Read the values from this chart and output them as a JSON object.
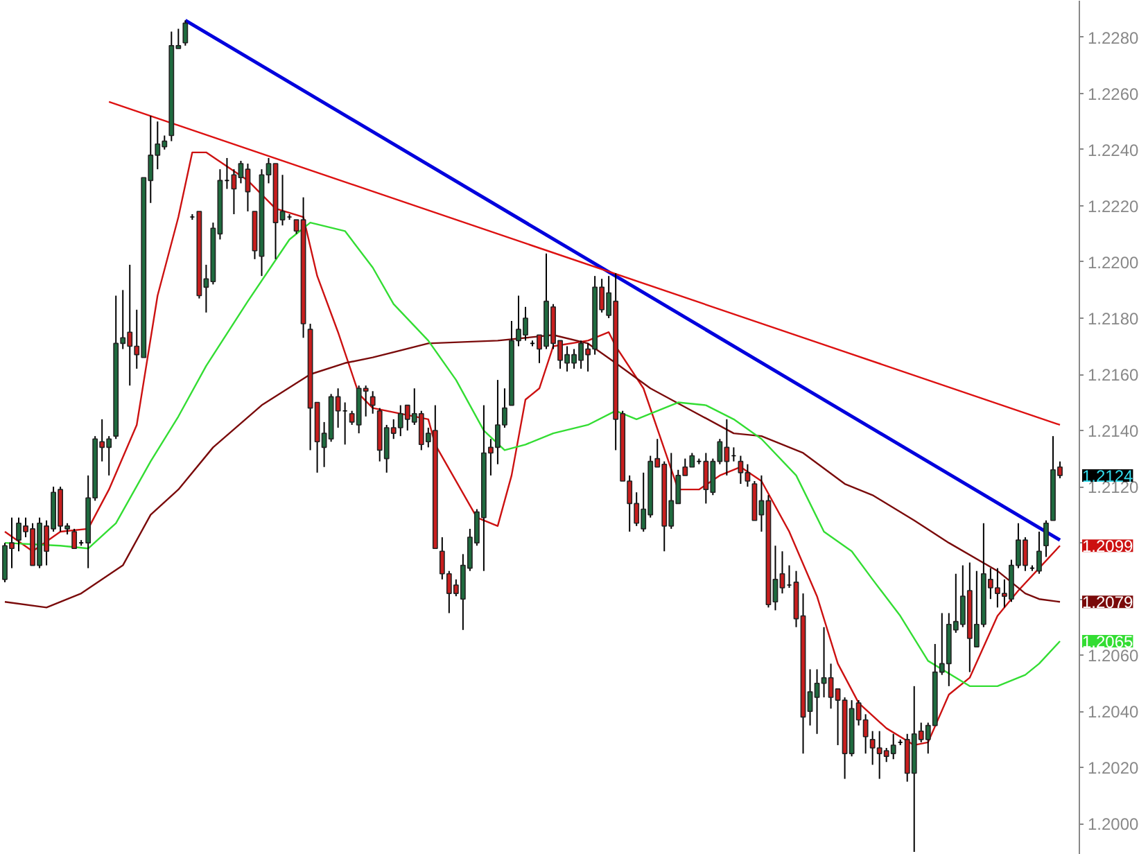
{
  "chart_data": {
    "type": "candlestick",
    "categories": [
      null,
      null,
      null,
      null,
      null,
      null,
      null,
      null,
      null,
      null,
      null,
      null,
      null,
      null,
      null,
      null,
      null,
      null,
      null,
      null,
      null,
      null,
      null,
      null,
      null,
      null,
      null,
      null,
      null,
      null,
      null,
      null,
      null,
      null,
      null,
      null,
      null,
      null,
      null,
      null,
      null,
      null,
      null,
      null,
      null,
      null,
      null,
      null,
      null,
      null,
      null,
      null,
      null,
      null,
      null,
      null,
      null,
      null,
      null,
      null,
      null,
      null,
      null,
      null,
      null,
      null,
      null,
      null,
      null,
      null,
      null,
      null,
      null,
      null,
      null,
      null,
      null,
      null,
      null,
      null,
      null,
      null,
      null,
      null,
      null,
      null,
      null,
      null,
      null,
      null,
      null,
      null,
      null,
      null,
      null,
      null,
      null,
      null,
      null,
      null,
      null,
      null,
      null,
      null,
      null,
      null,
      null,
      null,
      null,
      null,
      null,
      null,
      null,
      null,
      null,
      null,
      null,
      null,
      null,
      null,
      null,
      null,
      null,
      null,
      null,
      null,
      null,
      null,
      null,
      null,
      null,
      null,
      null,
      null,
      null,
      null,
      null,
      null,
      null,
      null,
      null,
      null,
      null,
      null,
      null,
      null,
      null,
      null,
      null,
      null,
      null,
      null,
      null
    ],
    "ohlc": [
      [
        1.2087,
        1.21,
        1.2086,
        1.2099
      ],
      [
        1.21,
        1.2109,
        1.2091,
        1.2098
      ],
      [
        1.2101,
        1.2109,
        1.2097,
        1.2107
      ],
      [
        1.2106,
        1.2109,
        1.2102,
        1.2104
      ],
      [
        1.2105,
        1.2107,
        1.2092,
        1.2092
      ],
      [
        1.2092,
        1.2109,
        1.2091,
        1.2107
      ],
      [
        1.2106,
        1.2108,
        1.2092,
        1.2097
      ],
      [
        1.2105,
        1.212,
        1.2104,
        1.2118
      ],
      [
        1.2119,
        1.212,
        1.2104,
        1.2106
      ],
      [
        1.2105,
        1.2107,
        1.2103,
        1.2106
      ],
      [
        1.2104,
        1.2105,
        1.2098,
        1.2098
      ],
      [
        1.21,
        1.2101,
        1.2099,
        1.21
      ],
      [
        1.21,
        1.2124,
        1.2091,
        1.2116
      ],
      [
        1.2116,
        1.2138,
        1.2115,
        1.2137
      ],
      [
        1.2136,
        1.2144,
        1.2129,
        1.2134
      ],
      [
        1.2134,
        1.2138,
        1.2124,
        1.2137
      ],
      [
        1.2138,
        1.2188,
        1.2137,
        1.2171
      ],
      [
        1.2171,
        1.219,
        1.2169,
        1.2173
      ],
      [
        1.2175,
        1.2199,
        1.2156,
        1.217
      ],
      [
        1.217,
        1.2183,
        1.2162,
        1.2167
      ],
      [
        1.2166,
        1.223,
        1.2166,
        1.223
      ],
      [
        1.2229,
        1.2252,
        1.2221,
        1.2238
      ],
      [
        1.2238,
        1.225,
        1.2233,
        1.2242
      ],
      [
        1.2241,
        1.2245,
        1.224,
        1.2243
      ],
      [
        1.2245,
        1.2282,
        1.2243,
        1.2277
      ],
      [
        1.2276,
        1.2283,
        1.2276,
        1.2277
      ],
      [
        1.2278,
        1.2286,
        1.2277,
        1.2285
      ],
      [
        1.2216,
        1.2217,
        1.2215,
        1.2216
      ],
      [
        1.2218,
        1.2218,
        1.2187,
        1.2188
      ],
      [
        1.2191,
        1.2199,
        1.2182,
        1.2194
      ],
      [
        1.2193,
        1.2214,
        1.2192,
        1.2212
      ],
      [
        1.221,
        1.2233,
        1.2208,
        1.2229
      ],
      [
        1.2229,
        1.2237,
        1.2226,
        1.2229
      ],
      [
        1.2231,
        1.2233,
        1.2217,
        1.2226
      ],
      [
        1.223,
        1.2236,
        1.2228,
        1.2235
      ],
      [
        1.2233,
        1.2235,
        1.2218,
        1.2225
      ],
      [
        1.2218,
        1.2218,
        1.2201,
        1.2204
      ],
      [
        1.2202,
        1.2233,
        1.2195,
        1.2231
      ],
      [
        1.2231,
        1.2237,
        1.2228,
        1.2235
      ],
      [
        1.2235,
        1.2235,
        1.2201,
        1.2214
      ],
      [
        1.2215,
        1.2231,
        1.2213,
        1.2218
      ],
      [
        1.2216,
        1.2217,
        1.2215,
        1.2216
      ],
      [
        1.2215,
        1.2215,
        1.221,
        1.2211
      ],
      [
        1.2215,
        1.2223,
        1.2173,
        1.2178
      ],
      [
        1.2176,
        1.2178,
        1.2133,
        1.2148
      ],
      [
        1.215,
        1.215,
        1.2125,
        1.2136
      ],
      [
        1.2134,
        1.2143,
        1.2127,
        1.2139
      ],
      [
        1.2137,
        1.2153,
        1.2136,
        1.2152
      ],
      [
        1.2152,
        1.2155,
        1.2141,
        1.2147
      ],
      [
        1.2147,
        1.215,
        1.2135,
        1.2147
      ],
      [
        1.2146,
        1.2147,
        1.2142,
        1.2143
      ],
      [
        1.2142,
        1.2156,
        1.2139,
        1.2155
      ],
      [
        1.2155,
        1.2156,
        1.2145,
        1.2154
      ],
      [
        1.2152,
        1.2154,
        1.2146,
        1.2149
      ],
      [
        1.2147,
        1.2148,
        1.2129,
        1.2133
      ],
      [
        1.213,
        1.2142,
        1.2125,
        1.2141
      ],
      [
        1.2141,
        1.2144,
        1.2137,
        1.2139
      ],
      [
        1.2141,
        1.2149,
        1.2138,
        1.2146
      ],
      [
        1.2149,
        1.2149,
        1.214,
        1.2144
      ],
      [
        1.2143,
        1.2155,
        1.2142,
        1.2146
      ],
      [
        1.2146,
        1.2147,
        1.2133,
        1.2135
      ],
      [
        1.2136,
        1.2141,
        1.2134,
        1.2139
      ],
      [
        1.214,
        1.2149,
        1.2098,
        1.2098
      ],
      [
        1.2097,
        1.2102,
        1.2087,
        1.2089
      ],
      [
        1.2089,
        1.209,
        1.2075,
        1.2082
      ],
      [
        1.2085,
        1.2087,
        1.2081,
        1.2082
      ],
      [
        1.208,
        1.2096,
        1.2069,
        1.2092
      ],
      [
        1.2091,
        1.2105,
        1.209,
        1.2102
      ],
      [
        1.21,
        1.2112,
        1.2099,
        1.2111
      ],
      [
        1.2109,
        1.2149,
        1.209,
        1.2132
      ],
      [
        1.2134,
        1.2137,
        1.2124,
        1.2132
      ],
      [
        1.2134,
        1.2158,
        1.2128,
        1.2142
      ],
      [
        1.2142,
        1.2155,
        1.2141,
        1.2148
      ],
      [
        1.2149,
        1.2179,
        1.2149,
        1.2172
      ],
      [
        1.2172,
        1.2188,
        1.217,
        1.2176
      ],
      [
        1.2174,
        1.2184,
        1.2172,
        1.218
      ],
      [
        1.2171,
        1.2172,
        1.217,
        1.2171
      ],
      [
        1.2174,
        1.2174,
        1.2164,
        1.2169
      ],
      [
        1.217,
        1.2203,
        1.2169,
        1.2186
      ],
      [
        1.2184,
        1.2185,
        1.2169,
        1.2171
      ],
      [
        1.2172,
        1.2172,
        1.2162,
        1.2165
      ],
      [
        1.2164,
        1.217,
        1.2161,
        1.2167
      ],
      [
        1.2164,
        1.2169,
        1.2162,
        1.2167
      ],
      [
        1.2165,
        1.2172,
        1.2162,
        1.2171
      ],
      [
        1.2169,
        1.2171,
        1.2161,
        1.2167
      ],
      [
        1.2169,
        1.2195,
        1.2167,
        1.2191
      ],
      [
        1.2191,
        1.2194,
        1.2182,
        1.2183
      ],
      [
        1.2181,
        1.2195,
        1.218,
        1.2189
      ],
      [
        1.2186,
        1.2196,
        1.2133,
        1.2144
      ],
      [
        1.2146,
        1.2147,
        1.2122,
        1.2122
      ],
      [
        1.2122,
        1.2124,
        1.2104,
        1.2114
      ],
      [
        1.2114,
        1.2118,
        1.2106,
        1.2107
      ],
      [
        1.2105,
        1.2125,
        1.2104,
        1.2112
      ],
      [
        1.211,
        1.2131,
        1.2109,
        1.2129
      ],
      [
        1.213,
        1.2137,
        1.2127,
        1.2127
      ],
      [
        1.2128,
        1.2129,
        1.2097,
        1.2106
      ],
      [
        1.2106,
        1.2132,
        1.2105,
        1.2115
      ],
      [
        1.2114,
        1.2126,
        1.2114,
        1.2124
      ],
      [
        1.2127,
        1.213,
        1.2124,
        1.2124
      ],
      [
        1.2127,
        1.2132,
        1.2127,
        1.2131
      ],
      [
        1.2129,
        1.213,
        1.2128,
        1.2129
      ],
      [
        1.2129,
        1.2132,
        1.2114,
        1.2119
      ],
      [
        1.2118,
        1.213,
        1.2117,
        1.2129
      ],
      [
        1.2129,
        1.2137,
        1.2128,
        1.2136
      ],
      [
        1.2134,
        1.2144,
        1.2124,
        1.2129
      ],
      [
        1.2131,
        1.2134,
        1.2129,
        1.2131
      ],
      [
        1.2129,
        1.2131,
        1.2121,
        1.2125
      ],
      [
        1.2125,
        1.2128,
        1.212,
        1.2122
      ],
      [
        1.2121,
        1.2122,
        1.2108,
        1.2108
      ],
      [
        1.211,
        1.2124,
        1.2104,
        1.2115
      ],
      [
        1.2115,
        1.2117,
        1.2077,
        1.2078
      ],
      [
        1.2079,
        1.2099,
        1.2076,
        1.2087
      ],
      [
        1.2089,
        1.2097,
        1.2082,
        1.2084
      ],
      [
        1.2085,
        1.2092,
        1.2084,
        1.2085
      ],
      [
        1.2086,
        1.209,
        1.207,
        1.2073
      ],
      [
        1.2074,
        1.2082,
        1.2025,
        1.2038
      ],
      [
        1.204,
        1.2055,
        1.2035,
        1.2047
      ],
      [
        1.2045,
        1.2055,
        1.2032,
        1.205
      ],
      [
        1.205,
        1.207,
        1.2045,
        1.2052
      ],
      [
        1.2052,
        1.2057,
        1.2041,
        1.2045
      ],
      [
        1.2048,
        1.2048,
        1.2028,
        1.2044
      ],
      [
        1.2044,
        1.2045,
        1.2016,
        1.2025
      ],
      [
        1.2025,
        1.2044,
        1.2024,
        1.2041
      ],
      [
        1.2043,
        1.2044,
        1.2035,
        1.2037
      ],
      [
        1.2037,
        1.2039,
        1.2025,
        1.2031
      ],
      [
        1.203,
        1.2033,
        1.2021,
        1.2027
      ],
      [
        1.2027,
        1.2033,
        1.2016,
        1.2025
      ],
      [
        1.2026,
        1.2027,
        1.2022,
        1.2024
      ],
      [
        1.2025,
        1.2032,
        1.2023,
        1.2028
      ],
      [
        1.2029,
        1.203,
        1.2028,
        1.2029
      ],
      [
        1.203,
        1.2032,
        1.2015,
        1.2018
      ],
      [
        1.2018,
        1.2049,
        1.199,
        1.2032
      ],
      [
        1.2033,
        1.2036,
        1.2029,
        1.203
      ],
      [
        1.203,
        1.2036,
        1.2025,
        1.2035
      ],
      [
        1.2035,
        1.2064,
        1.2035,
        1.2054
      ],
      [
        1.2054,
        1.2075,
        1.2053,
        1.2057
      ],
      [
        1.2057,
        1.2075,
        1.2049,
        1.2071
      ],
      [
        1.2069,
        1.2089,
        1.2068,
        1.2072
      ],
      [
        1.2071,
        1.2092,
        1.207,
        1.2081
      ],
      [
        1.2083,
        1.2093,
        1.2054,
        1.2066
      ],
      [
        1.2063,
        1.209,
        1.2063,
        1.2071
      ],
      [
        1.2071,
        1.2107,
        1.207,
        1.2089
      ],
      [
        1.2087,
        1.2091,
        1.208,
        1.2084
      ],
      [
        1.2084,
        1.2091,
        1.2077,
        1.2082
      ],
      [
        1.2082,
        1.2087,
        1.2077,
        1.2081
      ],
      [
        1.208,
        1.2094,
        1.2079,
        1.2092
      ],
      [
        1.2092,
        1.2107,
        1.2091,
        1.2101
      ],
      [
        1.2101,
        1.2102,
        1.209,
        1.2092
      ],
      [
        1.2091,
        1.2092,
        1.209,
        1.2091
      ],
      [
        1.209,
        1.2104,
        1.2089,
        1.2097
      ],
      [
        1.2099,
        1.2108,
        1.2095,
        1.2107
      ],
      [
        1.2108,
        1.2138,
        1.2108,
        1.2126
      ],
      [
        1.2127,
        1.2129,
        1.2123,
        1.2124
      ]
    ],
    "series": [
      {
        "type": "line",
        "color": "#cc1111",
        "values": [
          1.2104,
          null,
          null,
          null,
          1.2097,
          null,
          null,
          null,
          1.2104,
          null,
          null,
          null,
          1.2105,
          null,
          null,
          1.2119,
          null,
          null,
          null,
          1.2142,
          null,
          null,
          1.2188,
          null,
          null,
          1.2216,
          null,
          1.2239,
          null,
          1.2239,
          null,
          null,
          null,
          null,
          null,
          1.2229,
          null,
          null,
          null,
          1.2219,
          null,
          null,
          null,
          1.2216,
          null,
          1.2195,
          null,
          null,
          1.2175,
          null,
          null,
          1.2153,
          null,
          1.2148,
          null,
          null,
          null,
          null,
          null,
          null,
          null,
          1.2144,
          1.2135,
          null,
          null,
          null,
          null,
          null,
          1.2109,
          null,
          null,
          1.2106,
          null,
          1.2124,
          null,
          1.2151,
          null,
          1.2155,
          null,
          1.217,
          null,
          null,
          null,
          null,
          1.2172,
          null,
          null,
          1.2175,
          1.217,
          null,
          null,
          null,
          1.2155,
          null,
          null,
          null,
          null,
          1.2119,
          null,
          null,
          1.2119,
          null,
          null,
          1.2124,
          null,
          null,
          1.2127,
          null,
          null,
          1.2122,
          null,
          null,
          null,
          1.2104,
          null,
          null,
          null,
          1.2081,
          null,
          null,
          1.2057,
          null,
          null,
          1.2043,
          null,
          null,
          null,
          1.2034,
          null,
          null,
          null,
          1.2028,
          null,
          1.2029,
          null,
          null,
          1.2046,
          null,
          null,
          1.2052,
          null,
          null,
          null,
          1.2074,
          null,
          null,
          1.2083,
          null,
          null,
          1.2091,
          null,
          null,
          1.2099
        ]
      },
      {
        "type": "line",
        "color": "#7a0a0a",
        "values": [
          1.2079,
          null,
          null,
          null,
          null,
          null,
          1.2077,
          null,
          null,
          null,
          null,
          1.2082,
          null,
          null,
          null,
          null,
          null,
          1.2092,
          null,
          null,
          null,
          1.211,
          null,
          null,
          null,
          1.2119,
          null,
          null,
          null,
          null,
          1.2134,
          null,
          null,
          null,
          null,
          null,
          null,
          1.2149,
          null,
          null,
          null,
          null,
          null,
          null,
          1.216,
          null,
          null,
          null,
          null,
          1.2164,
          null,
          null,
          null,
          1.2166,
          null,
          null,
          null,
          null,
          null,
          null,
          null,
          1.2171,
          null,
          null,
          null,
          null,
          null,
          null,
          null,
          null,
          null,
          1.2172,
          null,
          null,
          null,
          null,
          null,
          null,
          null,
          1.2174,
          null,
          null,
          null,
          null,
          1.2171,
          null,
          null,
          null,
          1.2164,
          null,
          null,
          null,
          null,
          1.2155,
          null,
          null,
          null,
          null,
          null,
          1.2147,
          null,
          null,
          null,
          null,
          null,
          1.2139,
          null,
          null,
          null,
          1.2138,
          null,
          null,
          null,
          null,
          null,
          1.2132,
          null,
          null,
          null,
          null,
          null,
          1.2121,
          null,
          null,
          null,
          1.2117,
          null,
          null,
          null,
          null,
          null,
          1.2108,
          null,
          null,
          null,
          null,
          1.21,
          null,
          null,
          null,
          null,
          null,
          null,
          1.209,
          null,
          null,
          null,
          1.2082,
          null,
          1.208,
          null,
          null,
          1.2079
        ]
      },
      {
        "type": "line",
        "color": "#33dd33",
        "values": [
          1.21,
          null,
          null,
          null,
          null,
          null,
          null,
          null,
          1.2099,
          null,
          null,
          null,
          1.2098,
          null,
          null,
          null,
          1.2107,
          null,
          null,
          null,
          null,
          1.2129,
          null,
          null,
          null,
          1.2145,
          null,
          null,
          null,
          1.2163,
          null,
          null,
          null,
          null,
          null,
          1.2186,
          null,
          null,
          null,
          null,
          null,
          1.2208,
          null,
          null,
          1.2214,
          null,
          null,
          null,
          null,
          1.2211,
          null,
          null,
          null,
          1.2198,
          null,
          null,
          1.2185,
          null,
          null,
          null,
          null,
          1.2172,
          null,
          null,
          null,
          1.2158,
          null,
          null,
          null,
          1.214,
          null,
          null,
          1.2133,
          null,
          null,
          1.2135,
          null,
          null,
          null,
          1.2139,
          null,
          null,
          null,
          null,
          1.2142,
          null,
          null,
          null,
          1.2147,
          null,
          null,
          1.2144,
          null,
          null,
          null,
          null,
          null,
          1.215,
          null,
          null,
          null,
          1.2149,
          null,
          null,
          null,
          1.2144,
          null,
          null,
          null,
          1.2137,
          null,
          null,
          null,
          null,
          1.2124,
          null,
          null,
          null,
          1.2104,
          null,
          null,
          null,
          1.2097,
          null,
          null,
          1.2087,
          null,
          null,
          null,
          1.2074,
          null,
          null,
          null,
          1.2058,
          null,
          null,
          null,
          null,
          null,
          1.2049,
          null,
          null,
          null,
          1.2049,
          null,
          null,
          null,
          1.2053,
          null,
          1.2057,
          null,
          null,
          1.2065
        ]
      },
      {
        "type": "line",
        "color": "#0000dd",
        "values": [
          null,
          null,
          null,
          null,
          null,
          null,
          null,
          null,
          null,
          null,
          null,
          null,
          null,
          null,
          null,
          null,
          null,
          null,
          null,
          null,
          null,
          null,
          null,
          null,
          null,
          null,
          1.2286,
          null,
          null,
          null,
          null,
          null,
          null,
          null,
          null,
          null,
          null,
          null,
          null,
          null,
          null,
          null,
          null,
          null,
          null,
          null,
          null,
          null,
          null,
          null,
          null,
          null,
          null,
          null,
          null,
          null,
          null,
          null,
          null,
          null,
          null,
          null,
          null,
          null,
          null,
          null,
          null,
          null,
          null,
          null,
          null,
          null,
          null,
          null,
          null,
          null,
          null,
          null,
          null,
          null,
          null,
          null,
          null,
          null,
          null,
          null,
          null,
          null,
          null,
          null,
          null,
          null,
          null,
          null,
          null,
          null,
          null,
          null,
          null,
          null,
          null,
          null,
          null,
          null,
          null,
          null,
          null,
          null,
          null,
          null,
          null,
          null,
          null,
          null,
          null,
          null,
          null,
          null,
          null,
          null,
          null,
          null,
          null,
          null,
          null,
          null,
          null,
          null,
          null,
          null,
          null,
          null,
          null,
          null,
          null,
          null,
          null,
          null,
          null,
          null,
          null,
          null,
          null,
          null,
          null,
          null,
          null,
          null,
          null,
          null,
          null,
          null,
          1.2101
        ]
      },
      {
        "type": "line",
        "color": "#dd1111",
        "values": [
          null,
          null,
          null,
          null,
          null,
          null,
          null,
          null,
          null,
          null,
          null,
          null,
          null,
          null,
          null,
          1.2257,
          null,
          null,
          null,
          null,
          null,
          null,
          null,
          null,
          null,
          null,
          null,
          null,
          null,
          null,
          null,
          null,
          null,
          null,
          null,
          null,
          null,
          null,
          null,
          null,
          null,
          null,
          null,
          null,
          null,
          null,
          null,
          null,
          null,
          null,
          null,
          null,
          null,
          null,
          null,
          null,
          null,
          null,
          null,
          null,
          null,
          null,
          null,
          null,
          null,
          null,
          null,
          null,
          null,
          null,
          null,
          null,
          null,
          null,
          null,
          null,
          null,
          null,
          null,
          null,
          null,
          null,
          null,
          null,
          null,
          null,
          null,
          null,
          null,
          null,
          null,
          null,
          null,
          null,
          null,
          null,
          null,
          null,
          null,
          null,
          null,
          null,
          null,
          null,
          null,
          null,
          null,
          null,
          null,
          null,
          null,
          null,
          null,
          null,
          null,
          null,
          null,
          null,
          null,
          null,
          null,
          null,
          null,
          null,
          null,
          null,
          null,
          null,
          null,
          null,
          null,
          null,
          null,
          null,
          null,
          null,
          null,
          null,
          null,
          null,
          null,
          null,
          null,
          null,
          null,
          null,
          null,
          null,
          null,
          null,
          null,
          null,
          1.2142
        ]
      }
    ],
    "ylim": [
      1.1989,
      1.2293
    ],
    "yticks": [
      {
        "value": 1.2,
        "label": "1.2000"
      },
      {
        "value": 1.202,
        "label": "1.2020"
      },
      {
        "value": 1.204,
        "label": "1.2040"
      },
      {
        "value": 1.206,
        "label": "1.2060"
      },
      {
        "value": 1.208,
        "label": null
      },
      {
        "value": 1.21,
        "label": null
      },
      {
        "value": 1.212,
        "label": "1.2120"
      },
      {
        "value": 1.214,
        "label": "1.2140"
      },
      {
        "value": 1.216,
        "label": "1.2160"
      },
      {
        "value": 1.218,
        "label": "1.2180"
      },
      {
        "value": 1.22,
        "label": "1.2200"
      },
      {
        "value": 1.222,
        "label": "1.2220"
      },
      {
        "value": 1.224,
        "label": "1.2240"
      },
      {
        "value": 1.226,
        "label": "1.2260"
      },
      {
        "value": 1.228,
        "label": "1.2280"
      }
    ],
    "tick_labels": "y",
    "grid": false,
    "annotations": [
      "1.2124",
      "1.2099",
      "1.2079",
      "1.2065"
    ]
  }
}
